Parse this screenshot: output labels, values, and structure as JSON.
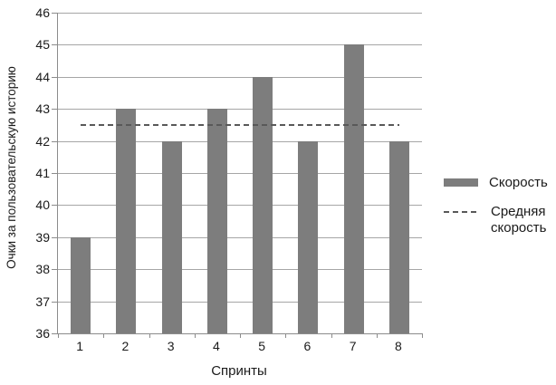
{
  "chart_data": {
    "type": "bar",
    "title": "",
    "categories": [
      "1",
      "2",
      "3",
      "4",
      "5",
      "6",
      "7",
      "8"
    ],
    "series": [
      {
        "name": "Скорость",
        "type": "bar",
        "values": [
          39,
          43,
          42,
          43,
          44,
          42,
          45,
          42
        ],
        "color": "#7d7d7d"
      },
      {
        "name": "Средняя скорость",
        "type": "dashed-line",
        "value": 42.5,
        "color": "#595959"
      }
    ],
    "xlabel": "Спринты",
    "ylabel": "Очки за пользовательскую историю",
    "ylim": [
      36,
      46
    ],
    "ytick_step": 1,
    "grid": true,
    "legend_position": "right"
  },
  "legend": {
    "items": [
      {
        "label": "Скорость",
        "swatch": "bar"
      },
      {
        "label": "Средняя скорость",
        "swatch": "dashed-line"
      }
    ]
  },
  "colors": {
    "bar": "#7d7d7d",
    "grid": "#a6a6a6",
    "axis": "#8c8c8c",
    "average_line": "#595959",
    "text": "#1a1a1a",
    "background": "#ffffff"
  }
}
